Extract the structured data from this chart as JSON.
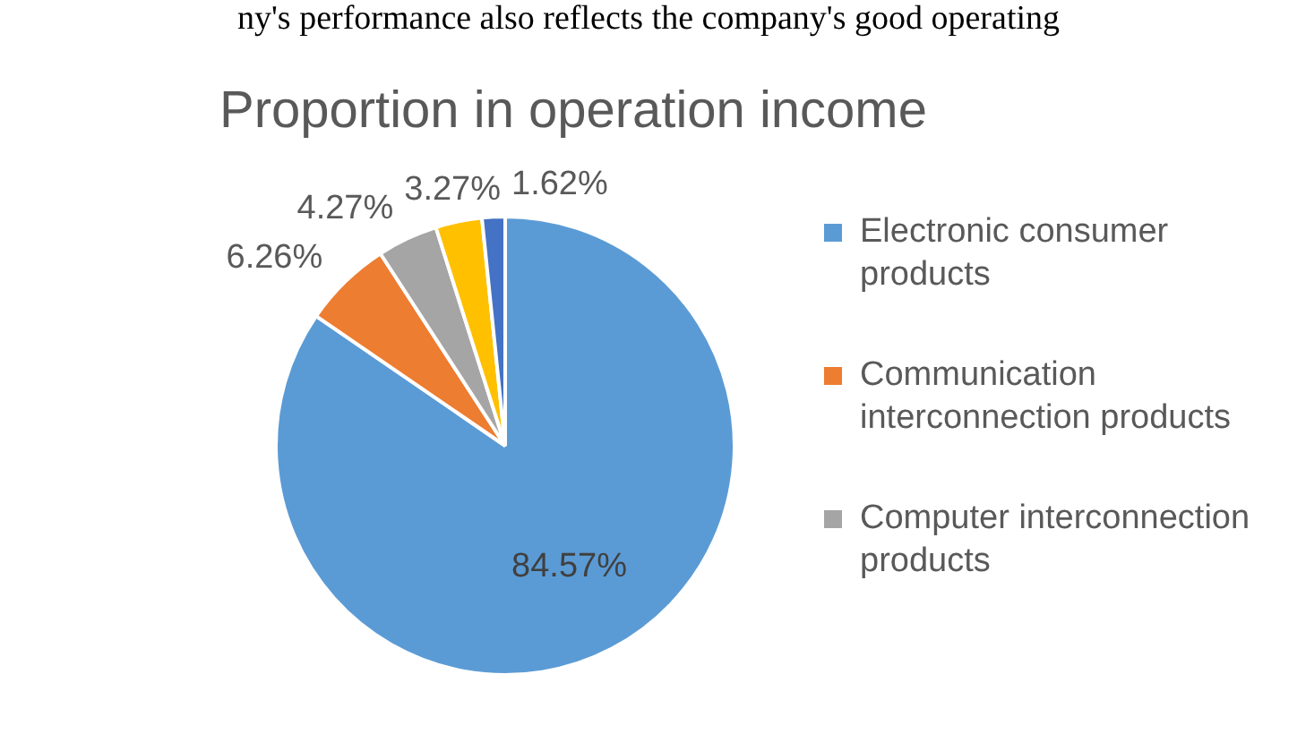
{
  "chart_data": {
    "type": "pie",
    "title": "Proportion in operation income",
    "annotations": [
      "ny's performance also reflects the company's good operating"
    ],
    "categories": [
      "Electronic consumer products",
      "Communication interconnection products",
      "Computer interconnection products",
      null,
      null
    ],
    "values": [
      84.57,
      6.26,
      4.27,
      3.27,
      1.62
    ],
    "value_labels": [
      "84.57%",
      "6.26%",
      "4.27%",
      "3.27%",
      "1.62%"
    ],
    "colors": [
      "#5b9bd5",
      "#ed7d31",
      "#a5a5a5",
      "#ffc000",
      "#4472c4"
    ],
    "legend": "right"
  }
}
